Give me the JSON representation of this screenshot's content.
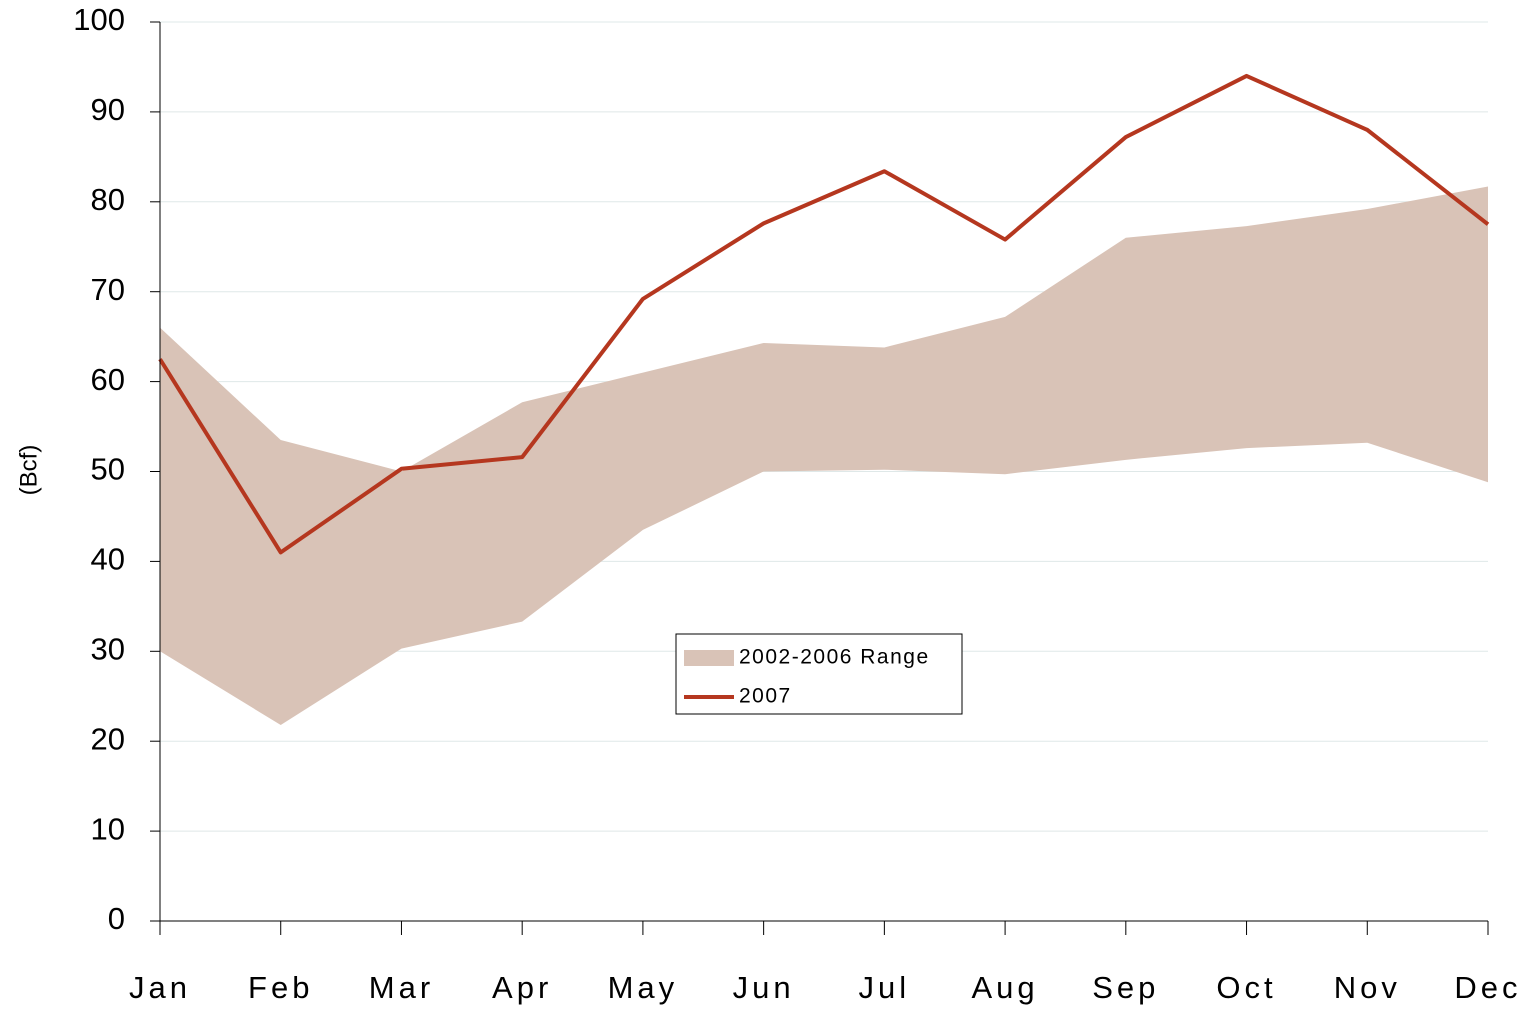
{
  "chart_data": {
    "type": "line",
    "y_label": "(Bcf)",
    "categories": [
      "Jan",
      "Feb",
      "Mar",
      "Apr",
      "May",
      "Jun",
      "Jul",
      "Aug",
      "Sep",
      "Oct",
      "Nov",
      "Dec"
    ],
    "series": [
      {
        "name": "2002-2006 Range",
        "kind": "range",
        "color": "#d9c3b7",
        "low": [
          30,
          21.8,
          30.3,
          33.3,
          43.5,
          50,
          50.2,
          49.7,
          51.3,
          52.6,
          53.2,
          48.8
        ],
        "high": [
          66,
          53.5,
          50,
          57.7,
          61,
          64.3,
          63.8,
          67.2,
          76,
          77.3,
          79.2,
          81.7
        ]
      },
      {
        "name": "2007",
        "kind": "line",
        "color": "#b5371f",
        "values": [
          62.5,
          41,
          50.3,
          51.6,
          69.2,
          77.6,
          83.4,
          75.8,
          87.2,
          94,
          88,
          77.5
        ]
      }
    ],
    "ylim": [
      0,
      100
    ],
    "yticks": [
      0,
      10,
      20,
      30,
      40,
      50,
      60,
      70,
      80,
      90,
      100
    ],
    "grid": true
  }
}
